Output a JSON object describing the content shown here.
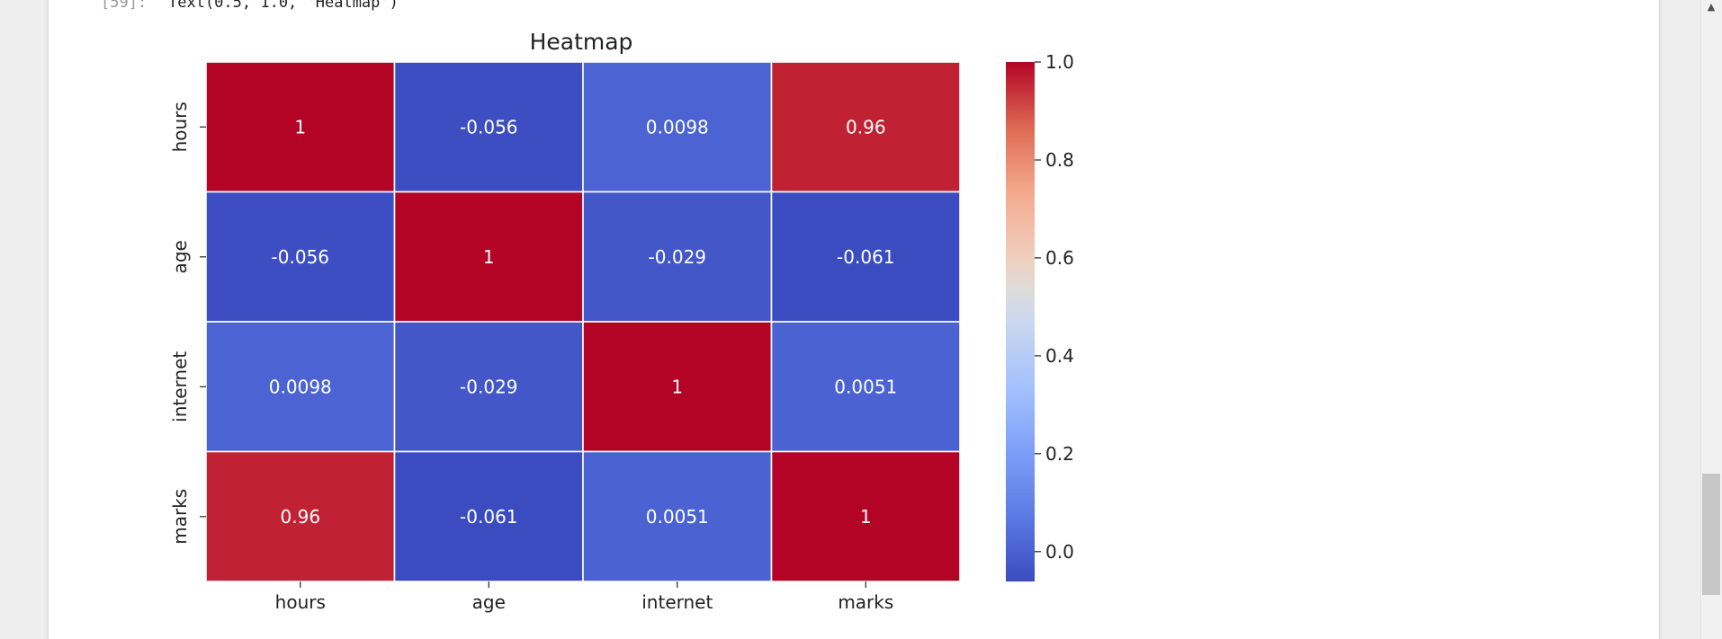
{
  "notebook": {
    "output_prompt": "[59]:",
    "output_text": "Text(0.5, 1.0, 'Heatmap')"
  },
  "chart_data": {
    "type": "heatmap",
    "title": "Heatmap",
    "x_labels": [
      "hours",
      "age",
      "internet",
      "marks"
    ],
    "y_labels": [
      "hours",
      "age",
      "internet",
      "marks"
    ],
    "matrix": [
      [
        1,
        -0.056,
        0.0098,
        0.96
      ],
      [
        -0.056,
        1,
        -0.029,
        -0.061
      ],
      [
        0.0098,
        -0.029,
        1,
        0.0051
      ],
      [
        0.96,
        -0.061,
        0.0051,
        1
      ]
    ],
    "annotations": [
      [
        "1",
        "-0.056",
        "0.0098",
        "0.96"
      ],
      [
        "-0.056",
        "1",
        "-0.029",
        "-0.061"
      ],
      [
        "0.0098",
        "-0.029",
        "1",
        "0.0051"
      ],
      [
        "0.96",
        "-0.061",
        "0.0051",
        "1"
      ]
    ],
    "colormap": "coolwarm",
    "value_range": [
      -0.061,
      1.0
    ],
    "colorbar_ticks": [
      "0.0",
      "0.2",
      "0.4",
      "0.6",
      "0.8",
      "1.0"
    ],
    "colors": {
      "low": "#3b4cc0",
      "mid": "#dddddd",
      "high": "#b40426"
    }
  }
}
